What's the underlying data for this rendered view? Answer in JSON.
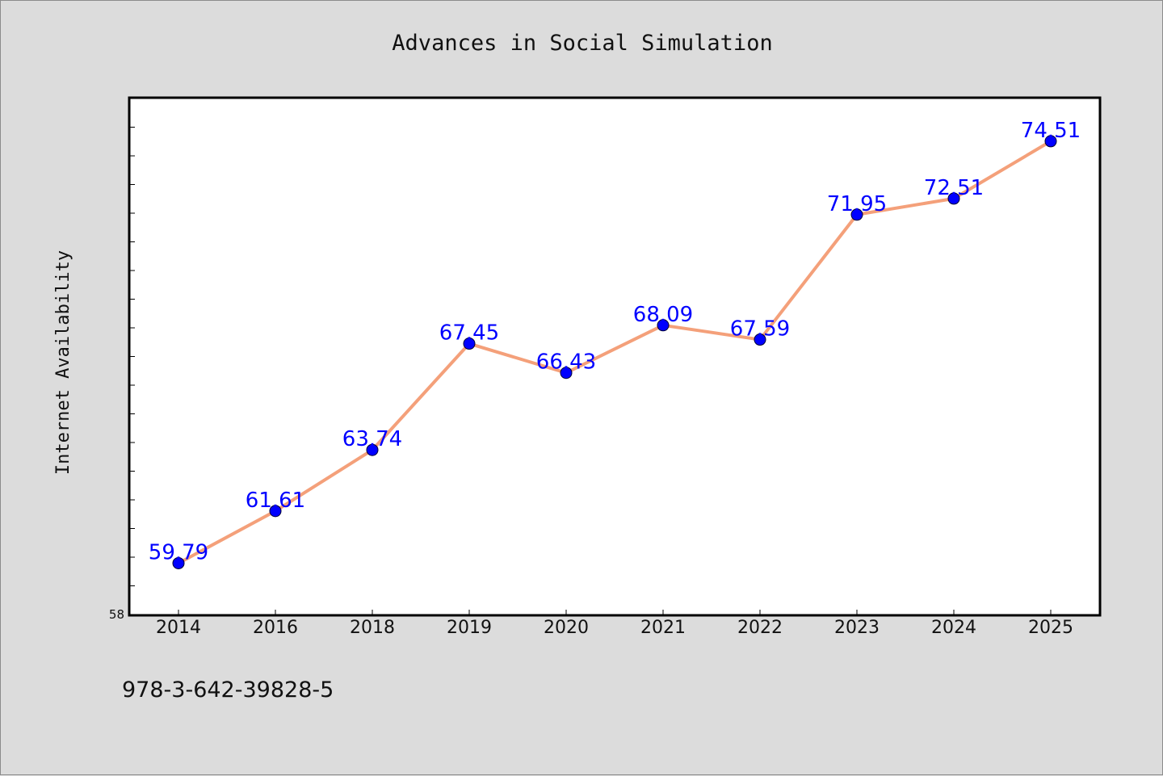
{
  "chart_data": {
    "type": "line",
    "title": "Advances in Social Simulation",
    "ylabel": "Internet Availability",
    "xlabel": "",
    "categories": [
      "2014",
      "2016",
      "2018",
      "2019",
      "2020",
      "2021",
      "2022",
      "2023",
      "2024",
      "2025"
    ],
    "series": [
      {
        "values": [
          59.79,
          61.61,
          63.74,
          67.45,
          66.43,
          68.09,
          67.59,
          71.95,
          72.51,
          74.51
        ],
        "labels": [
          "59.79",
          "61.61",
          "63.74",
          "67.45",
          "66.43",
          "68.09",
          "67.59",
          "71.95",
          "72.51",
          "74.51"
        ],
        "line_color": "#f4a07a",
        "marker_color": "#0000ff"
      }
    ],
    "ylim": [
      58,
      76
    ],
    "ytick_labels": [
      {
        "value": 58,
        "label": "58"
      }
    ],
    "grid": false,
    "legend": "none",
    "plot_background": "#ffffff",
    "figure_background": "#dcdcdc"
  },
  "footer": {
    "isbn": "978-3-642-39828-5"
  }
}
